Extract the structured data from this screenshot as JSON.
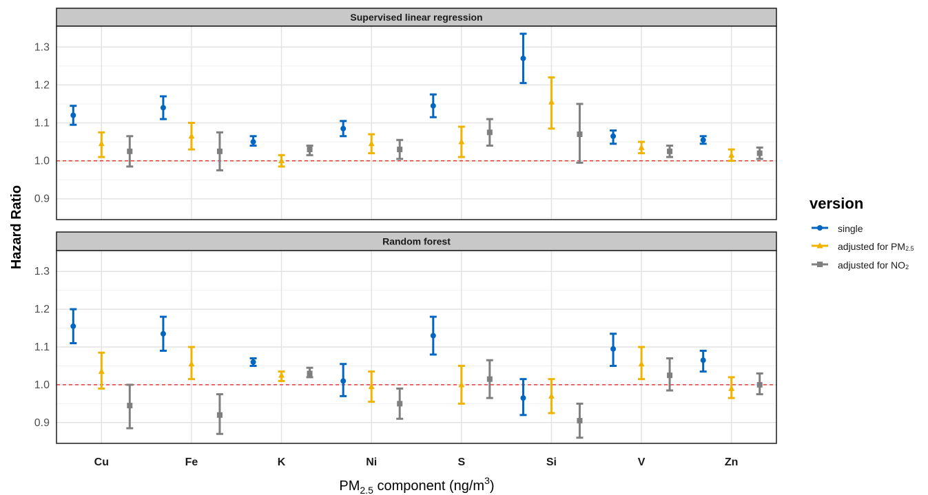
{
  "chart_data": {
    "type": "scatter",
    "subtype": "point-range (estimate with 95% CI error bars), faceted",
    "ylabel": "Hazard Ratio",
    "xlabel": {
      "prefix": "PM",
      "sub": "2.5",
      "mid": " component (ng/m",
      "sup": "3",
      "suffix": ")"
    },
    "categories": [
      "Cu",
      "Fe",
      "K",
      "Ni",
      "S",
      "Si",
      "V",
      "Zn"
    ],
    "ylim": [
      0.845,
      1.355
    ],
    "yticks": [
      0.9,
      1.0,
      1.1,
      1.2,
      1.3
    ],
    "ytick_labels": [
      "0.9",
      "1.0",
      "1.1",
      "1.2",
      "1.3"
    ],
    "reference_line": {
      "y": 1.0,
      "color": "#e41a1c",
      "style": "dashed"
    },
    "grid": true,
    "legend": {
      "title": "version",
      "position": "right",
      "entries": [
        {
          "text": "single",
          "sub": ""
        },
        {
          "text": "adjusted for PM",
          "sub": "2.5"
        },
        {
          "text": "adjusted for NO",
          "sub": "2"
        }
      ]
    },
    "series_colors": [
      "#0066c2",
      "#f0b400",
      "#7f7f7f"
    ],
    "series_shapes": [
      "circle",
      "triangle",
      "square"
    ],
    "panels": [
      {
        "title": "Supervised linear regression",
        "series": [
          {
            "est": [
              1.12,
              1.14,
              1.05,
              1.085,
              1.145,
              1.27,
              1.065,
              1.055
            ],
            "low": [
              1.095,
              1.11,
              1.04,
              1.065,
              1.115,
              1.205,
              1.045,
              1.045
            ],
            "high": [
              1.145,
              1.17,
              1.065,
              1.105,
              1.175,
              1.335,
              1.08,
              1.065
            ]
          },
          {
            "est": [
              1.045,
              1.065,
              1.0,
              1.045,
              1.05,
              1.155,
              1.035,
              1.015
            ],
            "low": [
              1.01,
              1.03,
              0.985,
              1.02,
              1.01,
              1.085,
              1.02,
              1.0
            ],
            "high": [
              1.075,
              1.1,
              1.015,
              1.07,
              1.09,
              1.22,
              1.05,
              1.03
            ]
          },
          {
            "est": [
              1.025,
              1.025,
              1.03,
              1.03,
              1.075,
              1.07,
              1.025,
              1.02
            ],
            "low": [
              0.985,
              0.975,
              1.015,
              1.005,
              1.04,
              0.995,
              1.01,
              1.005
            ],
            "high": [
              1.065,
              1.075,
              1.04,
              1.055,
              1.11,
              1.15,
              1.04,
              1.035
            ]
          }
        ]
      },
      {
        "title": "Random forest",
        "series": [
          {
            "est": [
              1.155,
              1.135,
              1.06,
              1.01,
              1.13,
              0.965,
              1.095,
              1.065
            ],
            "low": [
              1.11,
              1.09,
              1.05,
              0.97,
              1.08,
              0.92,
              1.05,
              1.035
            ],
            "high": [
              1.2,
              1.18,
              1.07,
              1.055,
              1.18,
              1.015,
              1.135,
              1.09
            ]
          },
          {
            "est": [
              1.035,
              1.055,
              1.025,
              0.995,
              1.0,
              0.97,
              1.055,
              0.99
            ],
            "low": [
              0.99,
              1.015,
              1.01,
              0.955,
              0.95,
              0.925,
              1.015,
              0.965
            ],
            "high": [
              1.085,
              1.1,
              1.035,
              1.035,
              1.05,
              1.015,
              1.1,
              1.02
            ]
          },
          {
            "est": [
              0.945,
              0.92,
              1.03,
              0.95,
              1.015,
              0.905,
              1.025,
              1.0
            ],
            "low": [
              0.885,
              0.87,
              1.02,
              0.91,
              0.965,
              0.86,
              0.985,
              0.975
            ],
            "high": [
              1.0,
              0.975,
              1.045,
              0.99,
              1.065,
              0.95,
              1.07,
              1.03
            ]
          }
        ]
      }
    ]
  }
}
